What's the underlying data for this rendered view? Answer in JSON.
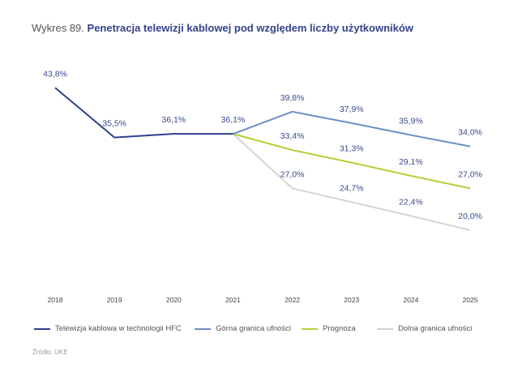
{
  "title_prefix": "Wykres 89.",
  "title_main": "Penetracja telewizji kablowej pod względem liczby użytkowników",
  "source": "Źródło: UKE",
  "chart_data": {
    "type": "line",
    "title": "Penetracja telewizji kablowej pod względem liczby użytkowników",
    "x": [
      "2018",
      "2019",
      "2020",
      "2021",
      "2022",
      "2023",
      "2024",
      "2025"
    ],
    "ylim": [
      10,
      46
    ],
    "grid": false,
    "legend_position": "bottom",
    "series": [
      {
        "name": "Telewizja kablowa w technologii HFC",
        "color": "#2e3f8f",
        "values": [
          43.8,
          35.5,
          36.1,
          36.1,
          null,
          null,
          null,
          null
        ],
        "labels": [
          "43,8%",
          "35,5%",
          "36,1%",
          "36,1%"
        ]
      },
      {
        "name": "Górna granica ufności",
        "color": "#6f8fc6",
        "values": [
          null,
          null,
          null,
          36.1,
          39.8,
          37.9,
          35.9,
          34.0
        ],
        "labels": [
          "39,8%",
          "37,9%",
          "35,9%",
          "34,0%"
        ]
      },
      {
        "name": "Prognoza",
        "color": "#b5cf3a",
        "values": [
          null,
          null,
          null,
          36.1,
          33.4,
          31.3,
          29.1,
          27.0
        ],
        "labels": [
          "33,4%",
          "31,3%",
          "29,1%",
          "27,0%"
        ]
      },
      {
        "name": "Dolna granica ufności",
        "color": "#d4d4d4",
        "values": [
          null,
          null,
          null,
          36.1,
          27.0,
          24.7,
          22.4,
          20.0
        ],
        "labels": [
          "27,0%",
          "24,7%",
          "22,4%",
          "20,0%"
        ]
      }
    ]
  }
}
